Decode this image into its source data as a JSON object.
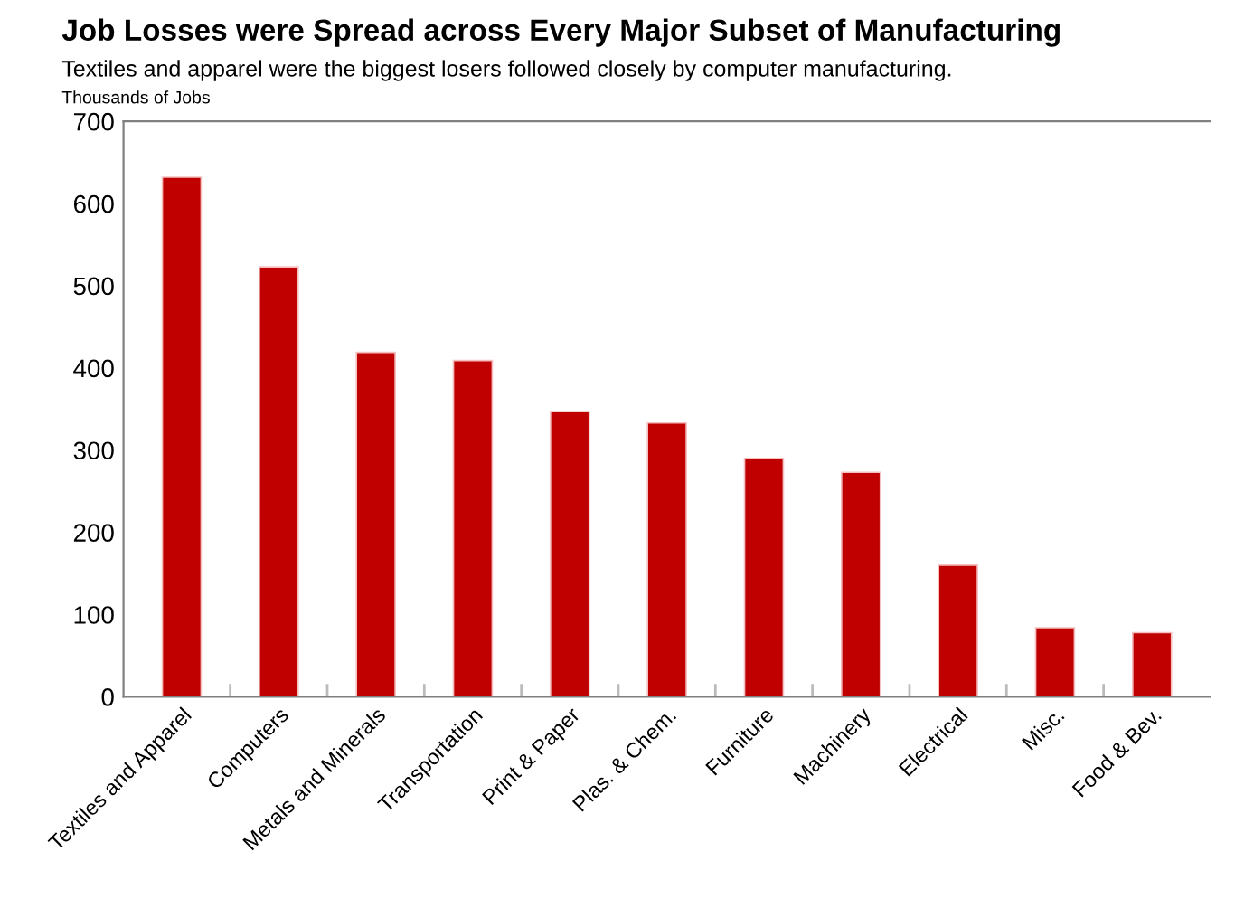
{
  "chart_data": {
    "type": "bar",
    "title": "Job Losses were Spread across Every Major Subset of Manufacturing",
    "subtitle": "Textiles and apparel were the biggest losers followed closely by computer manufacturing.",
    "ylabel": "Thousands of Jobs",
    "categories": [
      "Textiles and Apparel",
      "Computers",
      "Metals and Minerals",
      "Transportation",
      "Print & Paper",
      "Plas. & Chem.",
      "Furniture",
      "Machinery",
      "Electrical",
      "Misc.",
      "Food & Bev."
    ],
    "values": [
      632,
      523,
      419,
      409,
      347,
      333,
      290,
      273,
      160,
      84,
      78
    ],
    "color": "#c00000",
    "ylim": [
      0,
      700
    ],
    "yticks": [
      0,
      100,
      200,
      300,
      400,
      500,
      600,
      700
    ],
    "grid": false
  }
}
